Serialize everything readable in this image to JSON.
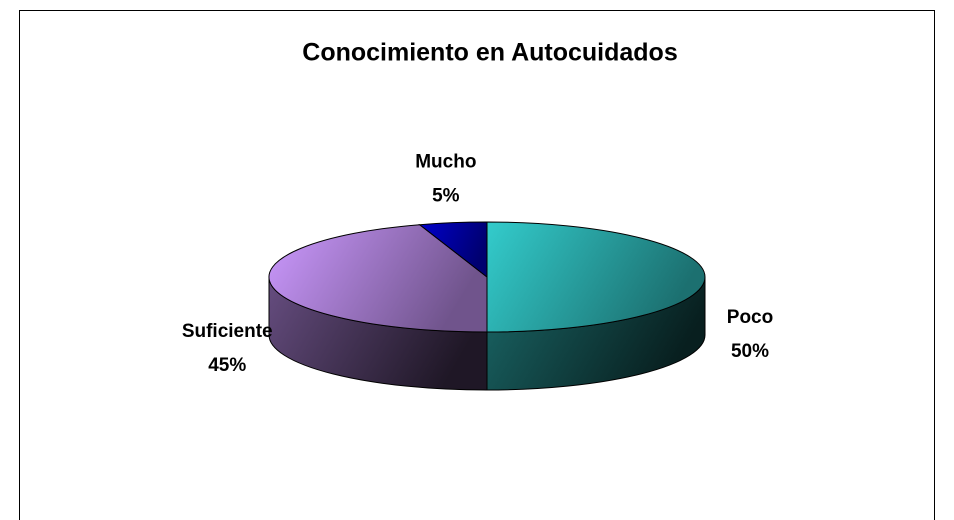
{
  "chart_data": {
    "type": "pie",
    "title": "Conocimiento en Autocuidados",
    "categories": [
      "Poco",
      "Suficiente",
      "Mucho"
    ],
    "values": [
      50,
      45,
      5
    ],
    "value_labels": [
      "50%",
      "45%",
      "5%"
    ],
    "colors": [
      "#33cccc",
      "#cc99ff",
      "#0000cc"
    ]
  }
}
